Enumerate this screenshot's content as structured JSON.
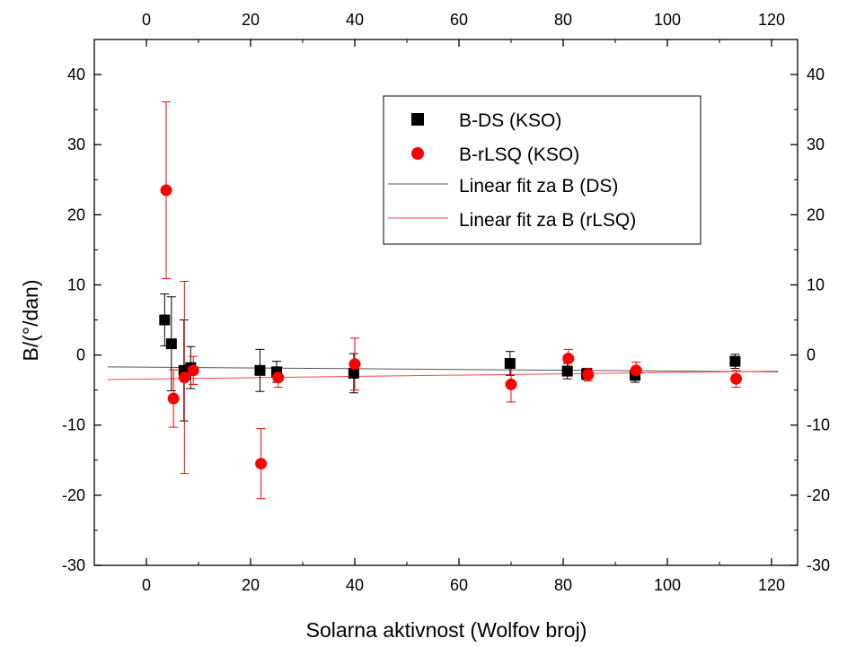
{
  "chart_data": {
    "type": "scatter",
    "title": "",
    "xlabel": "Solarna aktivnost (Wolfov broj)",
    "ylabel": "B/(°/dan)",
    "xlim": [
      -10,
      125
    ],
    "ylim": [
      -30,
      45
    ],
    "x_ticks": [
      0,
      20,
      40,
      60,
      80,
      100,
      120
    ],
    "y_ticks": [
      -30,
      -20,
      -10,
      0,
      10,
      20,
      30,
      40
    ],
    "x_tick_labels": [
      "0",
      "20",
      "40",
      "60",
      "80",
      "100",
      "120"
    ],
    "y_tick_labels": [
      "-30",
      "-20",
      "-10",
      "0",
      "10",
      "20",
      "30",
      "40"
    ],
    "grid": false,
    "legend_position": "top-right",
    "series": [
      {
        "name": "B-DS (KSO)",
        "marker": "square",
        "color": "#000000",
        "points": [
          {
            "x": 3.5,
            "y": 5.0,
            "err": 3.7
          },
          {
            "x": 4.8,
            "y": 1.6,
            "err": 6.7
          },
          {
            "x": 7.2,
            "y": -2.2,
            "err": 7.2
          },
          {
            "x": 8.5,
            "y": -1.8,
            "err": 3.0
          },
          {
            "x": 21.8,
            "y": -2.2,
            "err": 3.0
          },
          {
            "x": 25.0,
            "y": -2.4,
            "err": 1.5
          },
          {
            "x": 39.8,
            "y": -2.6,
            "err": 2.8
          },
          {
            "x": 69.8,
            "y": -1.2,
            "err": 1.7
          },
          {
            "x": 80.8,
            "y": -2.3,
            "err": 1.1
          },
          {
            "x": 84.5,
            "y": -2.7,
            "err": 0.8
          },
          {
            "x": 93.8,
            "y": -2.9,
            "err": 1.0
          },
          {
            "x": 113.0,
            "y": -0.9,
            "err": 1.0
          }
        ]
      },
      {
        "name": "B-rLSQ (KSO)",
        "marker": "circle",
        "color": "#ff0000",
        "points": [
          {
            "x": 3.8,
            "y": 23.5,
            "err": 12.6
          },
          {
            "x": 5.2,
            "y": -6.2,
            "err": 4.1
          },
          {
            "x": 7.3,
            "y": -3.2,
            "err": 13.7
          },
          {
            "x": 9.0,
            "y": -2.2,
            "err": 2.0
          },
          {
            "x": 22.0,
            "y": -15.5,
            "err": 5.0
          },
          {
            "x": 25.3,
            "y": -3.2,
            "err": 1.4
          },
          {
            "x": 40.0,
            "y": -1.3,
            "err": 3.7
          },
          {
            "x": 70.0,
            "y": -4.2,
            "err": 2.5
          },
          {
            "x": 81.0,
            "y": -0.5,
            "err": 1.3
          },
          {
            "x": 84.8,
            "y": -2.8,
            "err": 0.9
          },
          {
            "x": 94.0,
            "y": -2.2,
            "err": 1.2
          },
          {
            "x": 113.2,
            "y": -3.4,
            "err": 1.2
          }
        ]
      }
    ],
    "fits": [
      {
        "name": "Linear fit za B (DS)",
        "color": "#555555",
        "x": [
          -10,
          125
        ],
        "y": [
          -1.7,
          -2.4
        ]
      },
      {
        "name": "Linear fit za B (rLSQ)",
        "color": "#ff4444",
        "x": [
          -10,
          125
        ],
        "y": [
          -3.5,
          -2.3
        ]
      }
    ]
  }
}
